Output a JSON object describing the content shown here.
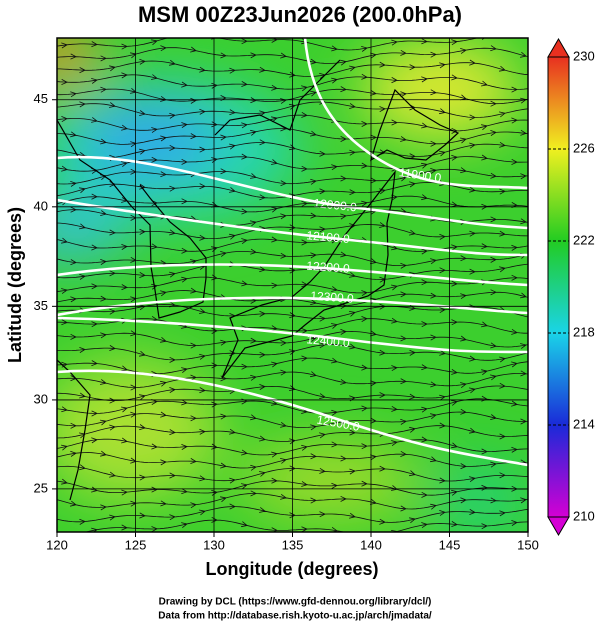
{
  "chart_data": {
    "type": "map",
    "title": "MSM 00Z23Jun2026 (200.0hPa)",
    "x_label": "Longitude (degrees)",
    "y_label": "Latitude  (degrees)",
    "projection": "mercator",
    "xlim": [
      120,
      150
    ],
    "ylim": [
      22.5,
      47.7
    ],
    "xticks": [
      120,
      125,
      130,
      135,
      140,
      145,
      150
    ],
    "yticks": [
      25,
      30,
      35,
      40,
      45
    ],
    "grid": true,
    "colorbar": {
      "lim": [
        210,
        230
      ],
      "ticks": [
        210,
        214,
        218,
        222,
        226,
        230
      ],
      "colors": [
        "#d400d4",
        "#1a2ad8",
        "#1ad4e8",
        "#22cc22",
        "#f0f020",
        "#e83020"
      ]
    },
    "contour_labels": [
      "11900.0",
      "12000.0",
      "12100.0",
      "12200.0",
      "12300.0",
      "12400.0",
      "12500.0"
    ]
  },
  "footer": {
    "credit": "Drawing by DCL (https://www.gfd-dennou.org/library/dcl/)",
    "source": "Data from http://database.rish.kyoto-u.ac.jp/arch/jmadata/"
  }
}
